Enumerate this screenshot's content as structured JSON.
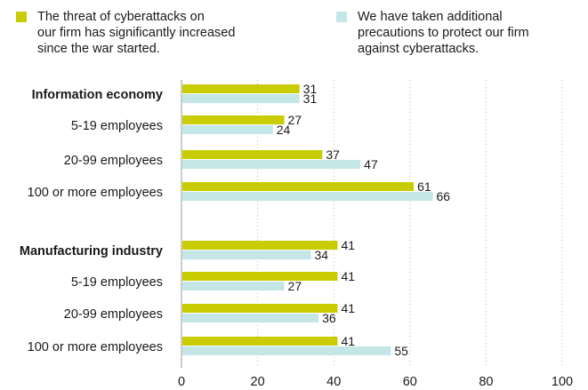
{
  "legend": [
    {
      "label": "The threat of cyberattacks on\nour firm has significantly increased\nsince the war started.",
      "color": "#c8cc00"
    },
    {
      "label": "We have taken additional\nprecautions to protect our firm\nagainst cyberattacks.",
      "color": "#c4e6e6"
    }
  ],
  "chart_data": {
    "type": "bar",
    "orientation": "horizontal",
    "categories": [
      "Information economy",
      "5-19 employees",
      "20-99 employees",
      "100 or more employees",
      "Manufacturing industry",
      "5-19 employees",
      "20-99 employees",
      "100 or more employees"
    ],
    "bold_categories": [
      "Information economy",
      "Manufacturing industry"
    ],
    "series": [
      {
        "values": [
          31,
          27,
          37,
          61,
          41,
          41,
          41,
          41
        ],
        "color": "#c8cc00"
      },
      {
        "values": [
          31,
          24,
          47,
          66,
          34,
          27,
          36,
          55
        ],
        "color": "#c4e6e6"
      }
    ],
    "xlim": [
      0,
      100
    ],
    "xticks": [
      0,
      20,
      40,
      60,
      80,
      100
    ],
    "grid": "vertical-dotted",
    "legend_position": "top"
  }
}
